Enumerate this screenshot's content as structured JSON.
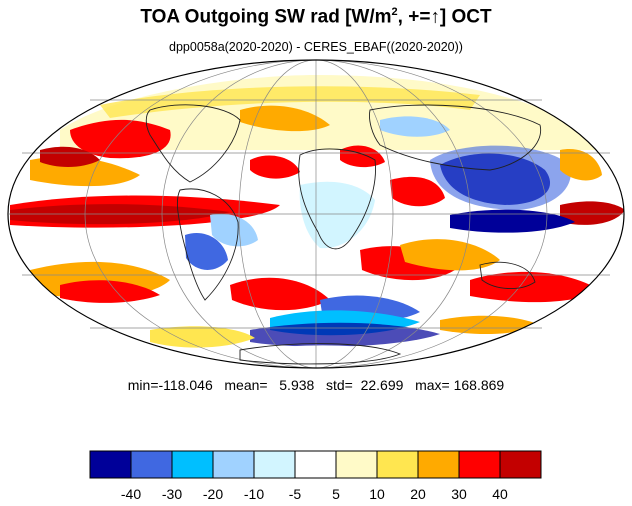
{
  "title": {
    "main": "TOA Outgoing SW rad [W/m",
    "sup": "2",
    "rest": ", +=",
    "arrow": "↑",
    "end": "] OCT"
  },
  "subtitle": "dpp0058a(2020-2020) - CERES_EBAF((2020-2020))",
  "stats": {
    "line": "min=-118.046   mean=   5.938   std=  22.699   max= 168.869",
    "min": -118.046,
    "mean": 5.938,
    "std": 22.699,
    "max": 168.869
  },
  "map": {
    "projection": "Mollweide",
    "field": "TOA outgoing shortwave radiation difference",
    "month": "OCT"
  },
  "colorbar": {
    "colors": [
      "#000099",
      "#4068e1",
      "#00bfff",
      "#a0d2ff",
      "#d2f5ff",
      "#ffffff",
      "#fffac8",
      "#ffe650",
      "#ffaa00",
      "#ff0000",
      "#c30000"
    ],
    "labels": [
      "-40",
      "-30",
      "-20",
      "-10",
      "-5",
      "5",
      "10",
      "20",
      "30",
      "40"
    ]
  }
}
